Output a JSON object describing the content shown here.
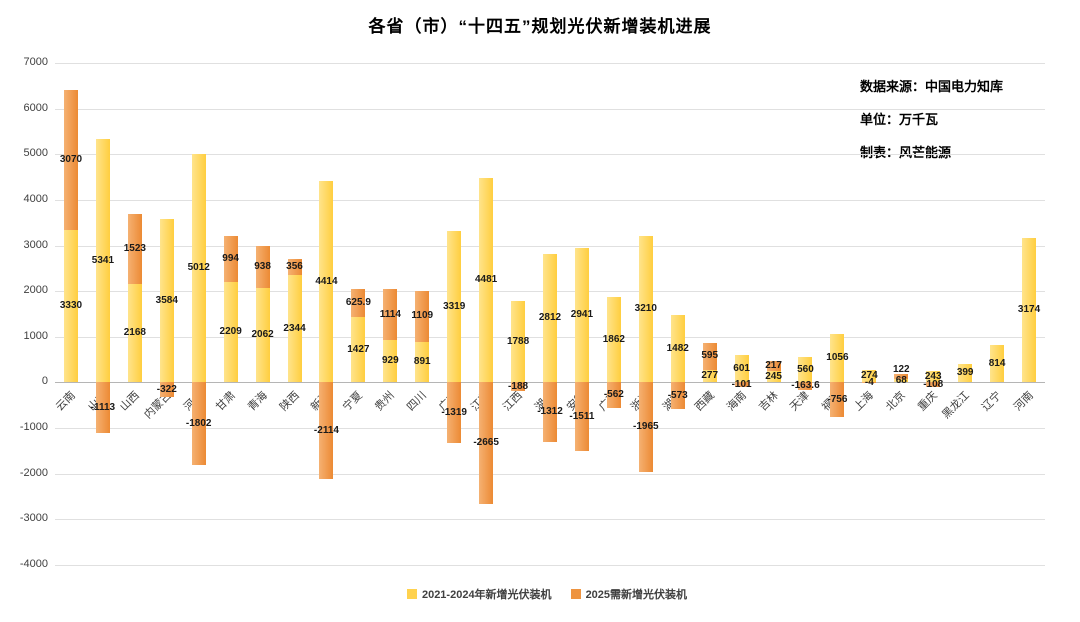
{
  "title": "各省（市）“十四五”规划光伏新增装机进展",
  "annotations": {
    "source": "数据来源：中国电力知库",
    "unit": "单位：万千瓦",
    "maker": "制表：风芒能源"
  },
  "chart_data": {
    "type": "bar",
    "stacked": true,
    "title": "各省（市）“十四五”规划光伏新增装机进展",
    "unit": "万千瓦",
    "categories": [
      "云南",
      "山东",
      "山西",
      "内蒙古",
      "河北",
      "甘肃",
      "青海",
      "陕西",
      "新疆",
      "宁夏",
      "贵州",
      "四川",
      "广东",
      "江苏",
      "江西",
      "湖北",
      "安徽",
      "广西",
      "浙江",
      "湖南",
      "西藏",
      "海南",
      "吉林",
      "天津",
      "福建",
      "上海",
      "北京",
      "重庆",
      "黑龙江",
      "辽宁",
      "河南"
    ],
    "series": [
      {
        "name": "2021-2024年新增光伏装机",
        "color": "#FFD24E",
        "values": [
          3330,
          5341,
          2168,
          3584,
          5012,
          2209,
          2062,
          2344,
          4414,
          1427,
          929,
          891,
          3319,
          4481,
          1788,
          2812,
          2941,
          1862,
          3210,
          1482,
          277,
          601,
          245,
          560,
          1056,
          274,
          68,
          243,
          399,
          814,
          3174
        ]
      },
      {
        "name": "2025需新增光伏装机",
        "color": "#EE9440",
        "values": [
          3070,
          -1113,
          1523,
          -322,
          -1802,
          994,
          938,
          356,
          -2114,
          625.9,
          1114,
          1109,
          -1319,
          -2665,
          -188,
          -1312,
          -1511,
          -562,
          -1965,
          -573,
          595,
          -101,
          217,
          -163.6,
          -756,
          -4,
          122,
          -108,
          0,
          0,
          0
        ]
      }
    ],
    "ylim": [
      -4000,
      7000
    ],
    "ytick_step": 1000,
    "grid": true,
    "legend_position": "bottom",
    "x_label_rotation": 45
  }
}
